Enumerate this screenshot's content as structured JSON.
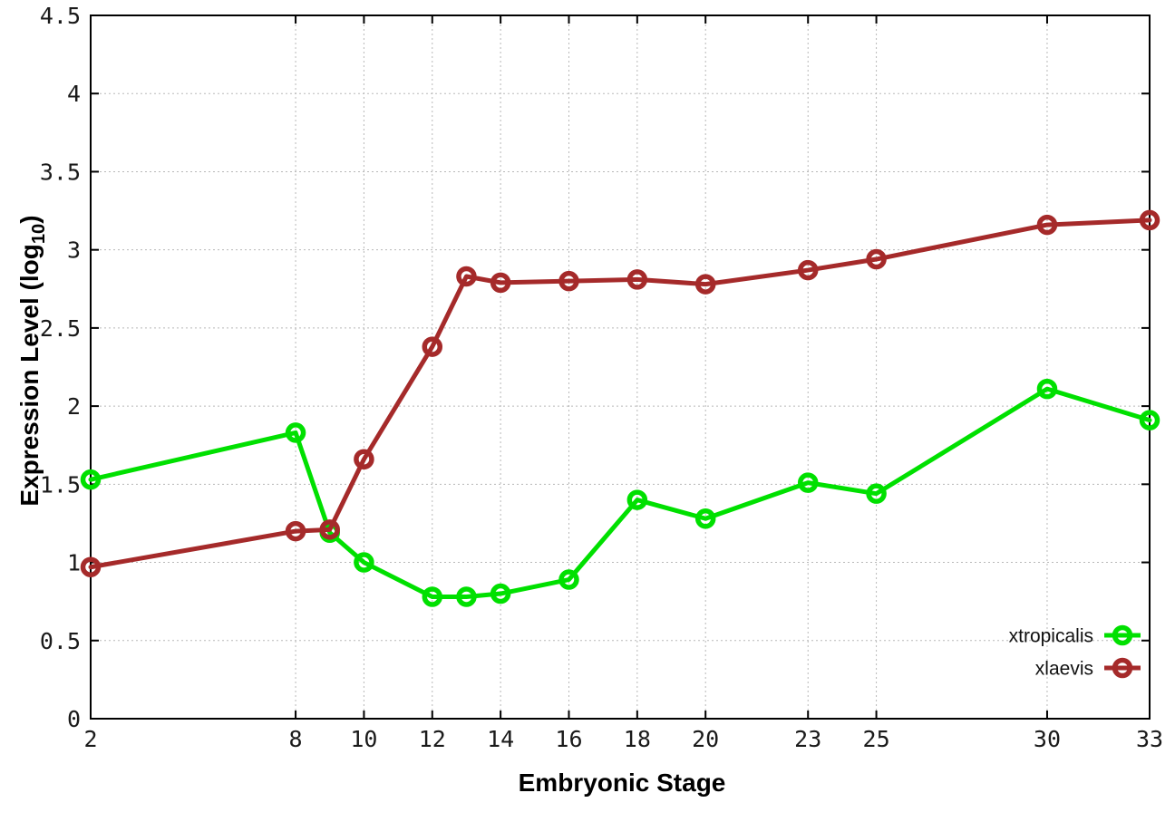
{
  "figure": {
    "background": "#ffffff"
  },
  "chart_data": {
    "type": "line",
    "title": "",
    "xlabel": "Embryonic Stage",
    "ylabel": "Expression Level (log10)",
    "ylabel_parts": {
      "prefix": "Expression Level (log",
      "sub": "10",
      "suffix": ")"
    },
    "x": [
      2,
      8,
      9,
      10,
      12,
      13,
      14,
      16,
      18,
      20,
      23,
      25,
      30,
      33
    ],
    "series": [
      {
        "name": "xtropicalis",
        "color": "#00e000",
        "values": [
          1.53,
          1.83,
          1.19,
          1.0,
          0.78,
          0.78,
          0.8,
          0.89,
          1.4,
          1.28,
          1.51,
          1.44,
          2.11,
          1.91
        ]
      },
      {
        "name": "xlaevis",
        "color": "#a52a2a",
        "values": [
          0.97,
          1.2,
          1.21,
          1.66,
          2.38,
          2.83,
          2.79,
          2.8,
          2.81,
          2.78,
          2.87,
          2.94,
          3.16,
          3.19
        ]
      }
    ],
    "xlim": [
      2,
      33
    ],
    "ylim": [
      0,
      4.5
    ],
    "xticks": [
      2,
      8,
      10,
      12,
      14,
      16,
      18,
      20,
      23,
      25,
      30,
      33
    ],
    "xtick_labels": [
      "2",
      "8",
      "10",
      "12",
      "14",
      "16",
      "18",
      "20",
      "23",
      "25",
      "30",
      "33"
    ],
    "yticks": [
      0,
      0.5,
      1,
      1.5,
      2,
      2.5,
      3,
      3.5,
      4,
      4.5
    ],
    "ytick_labels": [
      "0",
      "0.5",
      "1",
      "1.5",
      "2",
      "2.5",
      "3",
      "3.5",
      "4",
      "4.5"
    ],
    "grid": true,
    "grid_style": "dotted",
    "legend_position": "inside-bottom-right",
    "marker": "open-circle",
    "colors": {
      "grid": "#b8b8b8",
      "border": "#000000",
      "tick": "#000000",
      "text": "#1a1a1a"
    }
  }
}
